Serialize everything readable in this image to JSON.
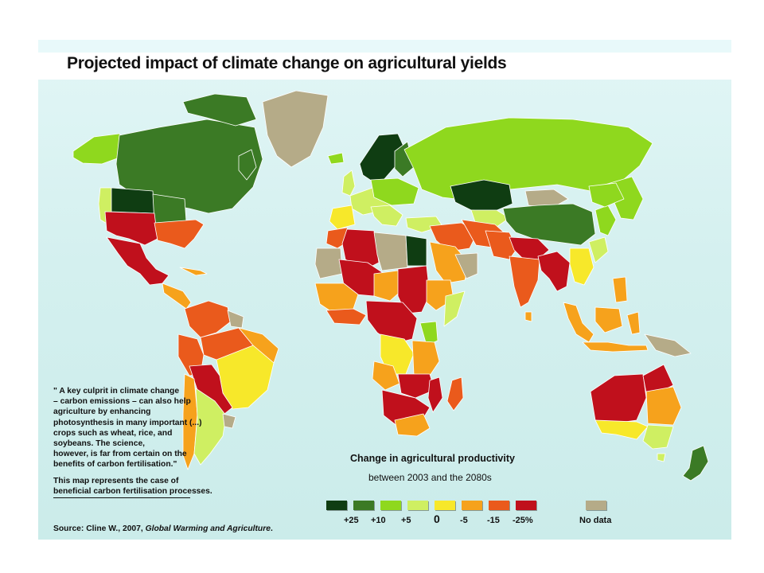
{
  "title": "Projected impact of climate change on agricultural yields",
  "quote": {
    "lines": [
      "\" A key culprit in climate change",
      "– carbon emissions – can also help",
      "agriculture by enhancing",
      "photosynthesis in many important (...)",
      "crops such as wheat, rice, and",
      "soybeans. The science,",
      "however, is far from certain on the",
      "benefits of carbon fertilisation.\""
    ],
    "note_line1": "This map represents the case of",
    "note_line2": "beneficial carbon fertilisation processes."
  },
  "legend": {
    "title": "Change in agricultural productivity",
    "subtitle": "between 2003 and the 2080s",
    "labels": [
      "+25",
      "+10",
      "+5",
      "0",
      "-5",
      "-15",
      "-25%"
    ],
    "no_data_label": "No data",
    "colors": {
      "p25": "#0f3d12",
      "p10": "#3b7a25",
      "p5": "#8fd81e",
      "zero": "#cfef62",
      "m5": "#f7e82a",
      "m15": "#f6a21c",
      "m25": "#ea5a1c",
      "m40": "#c0101c",
      "nodata": "#b5ab88"
    }
  },
  "source": {
    "prefix": "Source: Cline W., 2007, ",
    "title": "Global Warming and Agriculture",
    "suffix": "."
  }
}
